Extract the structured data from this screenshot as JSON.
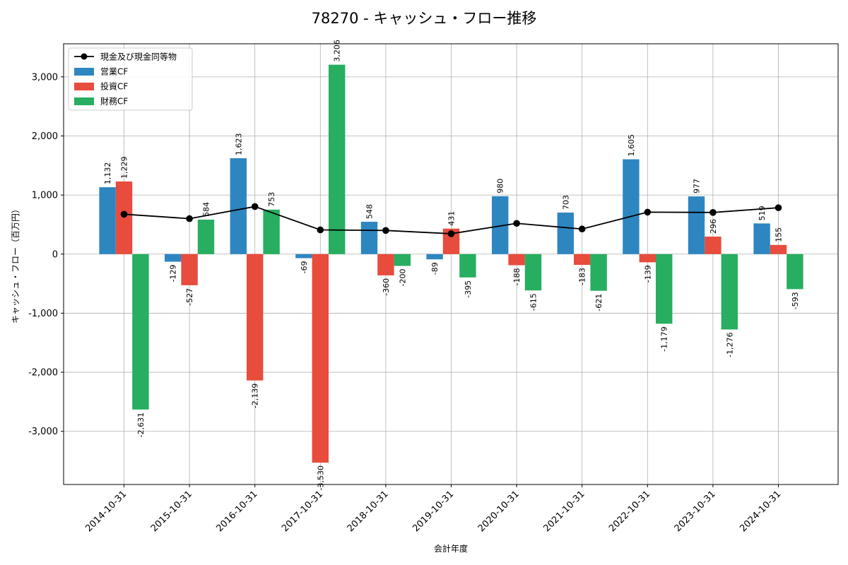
{
  "chart_data": {
    "type": "bar",
    "title": "78270 - キャッシュ・フロー推移",
    "xlabel": "会計年度",
    "ylabel": "キャッシュ・フロー（百万円）",
    "categories": [
      "2014-10-31",
      "2015-10-31",
      "2016-10-31",
      "2017-10-31",
      "2018-10-31",
      "2019-10-31",
      "2020-10-31",
      "2021-10-31",
      "2022-10-31",
      "2023-10-31",
      "2024-10-31"
    ],
    "ylim": [
      -3900,
      3560
    ],
    "yticks": [
      -3000,
      -2000,
      -1000,
      0,
      1000,
      2000,
      3000
    ],
    "ytick_labels": [
      "-3,000",
      "-2,000",
      "-1,000",
      "0",
      "1,000",
      "2,000",
      "3,000"
    ],
    "grid": true,
    "legend": "top-left",
    "series": [
      {
        "name": "営業CF",
        "kind": "bar",
        "color": "#2e86c1",
        "values": [
          1132,
          -129,
          1623,
          -69,
          548,
          -89,
          980,
          703,
          1605,
          977,
          519
        ],
        "labels": [
          "1,132",
          "-129",
          "1,623",
          "-69",
          "548",
          "-89",
          "980",
          "703",
          "1,605",
          "977",
          "519"
        ]
      },
      {
        "name": "投資CF",
        "kind": "bar",
        "color": "#e74c3c",
        "values": [
          1229,
          -527,
          -2139,
          -3530,
          -360,
          431,
          -188,
          -183,
          -139,
          296,
          155
        ],
        "labels": [
          "1,229",
          "-527",
          "-2,139",
          "-3,530",
          "-360",
          "431",
          "-188",
          "-183",
          "-139",
          "296",
          "155"
        ]
      },
      {
        "name": "財務CF",
        "kind": "bar",
        "color": "#27ae60",
        "values": [
          -2631,
          584,
          753,
          3206,
          -200,
          -395,
          -615,
          -621,
          -1179,
          -1276,
          -593
        ],
        "labels": [
          "-2,631",
          "584",
          "753",
          "3,206",
          "-200",
          "-395",
          "-615",
          "-621",
          "-1,179",
          "-1,276",
          "-593"
        ]
      },
      {
        "name": "現金及び現金同等物",
        "kind": "line",
        "color": "#000000",
        "values": [
          675,
          600,
          805,
          410,
          400,
          345,
          520,
          425,
          710,
          705,
          785
        ]
      }
    ]
  }
}
